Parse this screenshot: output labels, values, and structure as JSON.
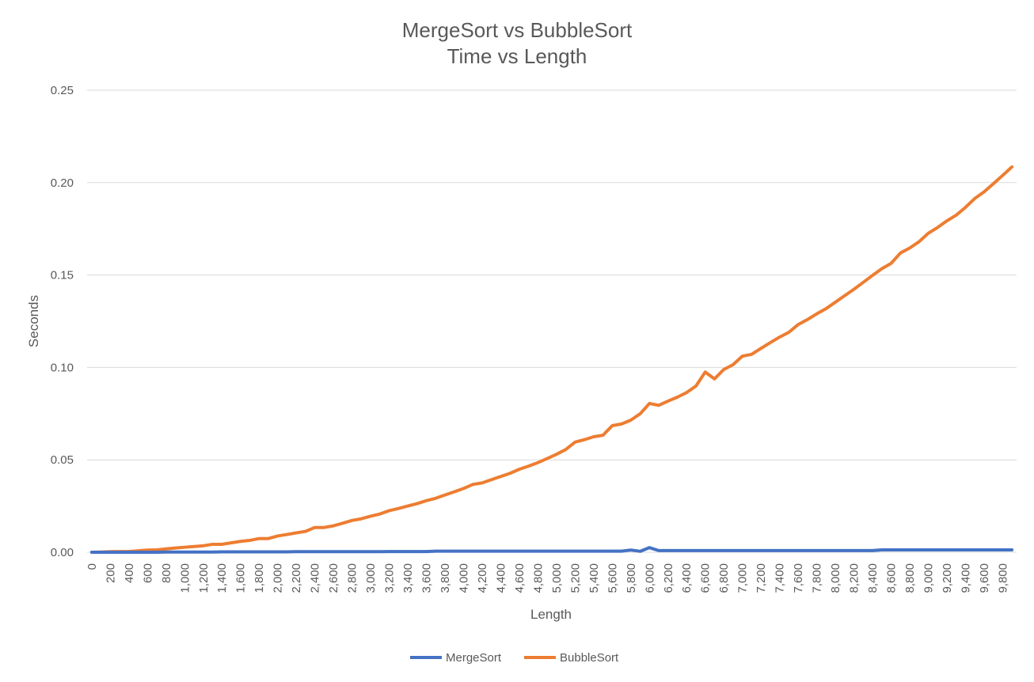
{
  "chart_data": {
    "type": "line",
    "title": "MergeSort vs BubbleSort",
    "subtitle": "Time vs Length",
    "xlabel": "Length",
    "ylabel": "Seconds",
    "ylim": [
      0,
      0.25
    ],
    "y_ticks": [
      "0.00",
      "0.05",
      "0.10",
      "0.15",
      "0.20",
      "0.25"
    ],
    "x_tick_labels": [
      "0",
      "200",
      "400",
      "600",
      "800",
      "1,000",
      "1,200",
      "1,400",
      "1,600",
      "1,800",
      "2,000",
      "2,200",
      "2,400",
      "2,600",
      "2,800",
      "3,000",
      "3,200",
      "3,400",
      "3,600",
      "3,800",
      "4,000",
      "4,200",
      "4,400",
      "4,600",
      "4,800",
      "5,000",
      "5,200",
      "5,400",
      "5,600",
      "5,800",
      "6,000",
      "6,200",
      "6,400",
      "6,600",
      "6,800",
      "7,000",
      "7,200",
      "7,400",
      "7,600",
      "7,800",
      "8,000",
      "8,200",
      "8,400",
      "8,600",
      "8,800",
      "9,000",
      "9,200",
      "9,400",
      "9,600",
      "9,800"
    ],
    "x": [
      0,
      100,
      200,
      300,
      400,
      500,
      600,
      700,
      800,
      900,
      1000,
      1100,
      1200,
      1300,
      1400,
      1500,
      1600,
      1700,
      1800,
      1900,
      2000,
      2100,
      2200,
      2300,
      2400,
      2500,
      2600,
      2700,
      2800,
      2900,
      3000,
      3100,
      3200,
      3300,
      3400,
      3500,
      3600,
      3700,
      3800,
      3900,
      4000,
      4100,
      4200,
      4300,
      4400,
      4500,
      4600,
      4700,
      4800,
      4900,
      5000,
      5100,
      5200,
      5300,
      5400,
      5500,
      5600,
      5700,
      5800,
      5900,
      6000,
      6100,
      6200,
      6300,
      6400,
      6500,
      6600,
      6700,
      6800,
      6900,
      7000,
      7100,
      7200,
      7300,
      7400,
      7500,
      7600,
      7700,
      7800,
      7900,
      8000,
      8100,
      8200,
      8300,
      8400,
      8500,
      8600,
      8700,
      8800,
      8900,
      9000,
      9100,
      9200,
      9300,
      9400,
      9500,
      9600,
      9700,
      9800,
      9900
    ],
    "grid": true,
    "legend_position": "bottom",
    "series": [
      {
        "name": "MergeSort",
        "color": "#4472C4",
        "values": [
          0,
          0,
          0,
          0,
          0,
          0,
          0,
          0,
          0.0001,
          0.0001,
          0.0001,
          0.0001,
          0.0001,
          0.0001,
          0.0002,
          0.0002,
          0.0002,
          0.0002,
          0.0002,
          0.0002,
          0.0002,
          0.0002,
          0.0003,
          0.0003,
          0.0003,
          0.0003,
          0.0003,
          0.0003,
          0.0003,
          0.0003,
          0.0003,
          0.0003,
          0.0004,
          0.0004,
          0.0004,
          0.0004,
          0.0004,
          0.0006,
          0.0006,
          0.0006,
          0.0006,
          0.0006,
          0.0006,
          0.0006,
          0.0006,
          0.0006,
          0.0006,
          0.0006,
          0.0006,
          0.0006,
          0.0006,
          0.0006,
          0.0006,
          0.0006,
          0.0006,
          0.0006,
          0.0006,
          0.0006,
          0.0012,
          0.0005,
          0.0025,
          0.0009,
          0.0009,
          0.0009,
          0.0009,
          0.0009,
          0.0009,
          0.0009,
          0.0009,
          0.0009,
          0.0009,
          0.0009,
          0.0009,
          0.0009,
          0.0009,
          0.0009,
          0.0009,
          0.0009,
          0.0009,
          0.0009,
          0.0009,
          0.0009,
          0.0009,
          0.0009,
          0.0009,
          0.0013,
          0.0013,
          0.0013,
          0.0013,
          0.0013,
          0.0013,
          0.0013,
          0.0013,
          0.0013,
          0.0013,
          0.0013,
          0.0013,
          0.0013,
          0.0013,
          0.0013
        ]
      },
      {
        "name": "BubbleSort",
        "color": "#ED7D31",
        "values": [
          0.0,
          0.0001,
          0.0003,
          0.0004,
          0.0004,
          0.0008,
          0.0012,
          0.0013,
          0.0018,
          0.0023,
          0.0027,
          0.0031,
          0.0035,
          0.0043,
          0.0043,
          0.0051,
          0.0059,
          0.0064,
          0.0074,
          0.0074,
          0.0088,
          0.0096,
          0.0105,
          0.0113,
          0.0134,
          0.0134,
          0.0143,
          0.0157,
          0.0172,
          0.0181,
          0.0195,
          0.0207,
          0.0225,
          0.0237,
          0.025,
          0.0263,
          0.0279,
          0.0292,
          0.031,
          0.0327,
          0.0345,
          0.0367,
          0.0375,
          0.0393,
          0.041,
          0.0427,
          0.0449,
          0.0466,
          0.0485,
          0.0507,
          0.053,
          0.0556,
          0.0596,
          0.0609,
          0.0625,
          0.0633,
          0.0685,
          0.0694,
          0.0715,
          0.0749,
          0.0805,
          0.0795,
          0.0818,
          0.0839,
          0.0864,
          0.0899,
          0.0975,
          0.0938,
          0.0989,
          0.1015,
          0.1061,
          0.1071,
          0.1103,
          0.1134,
          0.1164,
          0.119,
          0.1232,
          0.1259,
          0.129,
          0.1318,
          0.1353,
          0.1388,
          0.1423,
          0.146,
          0.1498,
          0.1534,
          0.1563,
          0.1619,
          0.1646,
          0.168,
          0.1726,
          0.1757,
          0.1793,
          0.1824,
          0.1866,
          0.1914,
          0.195,
          0.1994,
          0.2039,
          0.2085
        ]
      }
    ]
  }
}
